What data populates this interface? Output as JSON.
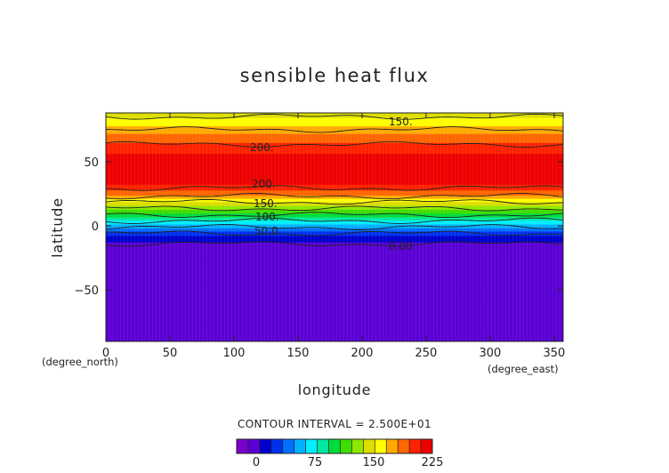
{
  "chart_data": {
    "type": "heatmap",
    "title": "sensible heat flux",
    "xlabel": "longitude",
    "ylabel": "latitude",
    "x_unit": "(degree_east)",
    "y_unit": "(degree_north)",
    "xlim": [
      0,
      357
    ],
    "ylim": [
      -90,
      88
    ],
    "x_ticks": [
      "0",
      "50",
      "100",
      "150",
      "200",
      "250",
      "300",
      "350"
    ],
    "y_ticks": [
      "-50",
      "0",
      "50"
    ],
    "contour_interval_text": "CONTOUR INTERVAL = 2.500E+01",
    "contour_labels": [
      "150.",
      "200.",
      "200.",
      "150.",
      "100.",
      "50.0",
      "0.00"
    ],
    "latitude_profile": {
      "lat": [
        -90,
        -15,
        -14,
        -11,
        -8,
        -5,
        -3,
        -1,
        1,
        3,
        5,
        7,
        9,
        11,
        13,
        15,
        17,
        19,
        21,
        24,
        28,
        31,
        33,
        40,
        55,
        62,
        65,
        70,
        75,
        80,
        85,
        88
      ],
      "value": [
        -8,
        -8,
        0,
        8,
        18,
        28,
        40,
        50,
        60,
        70,
        80,
        92,
        102,
        112,
        122,
        132,
        142,
        152,
        162,
        180,
        195,
        205,
        212,
        215,
        212,
        205,
        195,
        185,
        175,
        160,
        150,
        145
      ]
    },
    "colorbar": {
      "min": -25,
      "max": 225,
      "tick_labels": [
        "0",
        "75",
        "150",
        "225"
      ],
      "tick_values": [
        0,
        75,
        150,
        225
      ],
      "colors": [
        "#7b00cc",
        "#5a00d4",
        "#0000cc",
        "#0030ee",
        "#0070ff",
        "#00b0ff",
        "#00eeff",
        "#00e8a0",
        "#00dc3a",
        "#40dd00",
        "#90e800",
        "#dddd00",
        "#ffff00",
        "#ffaa00",
        "#ff6600",
        "#ff2200",
        "#ee0000"
      ]
    }
  }
}
